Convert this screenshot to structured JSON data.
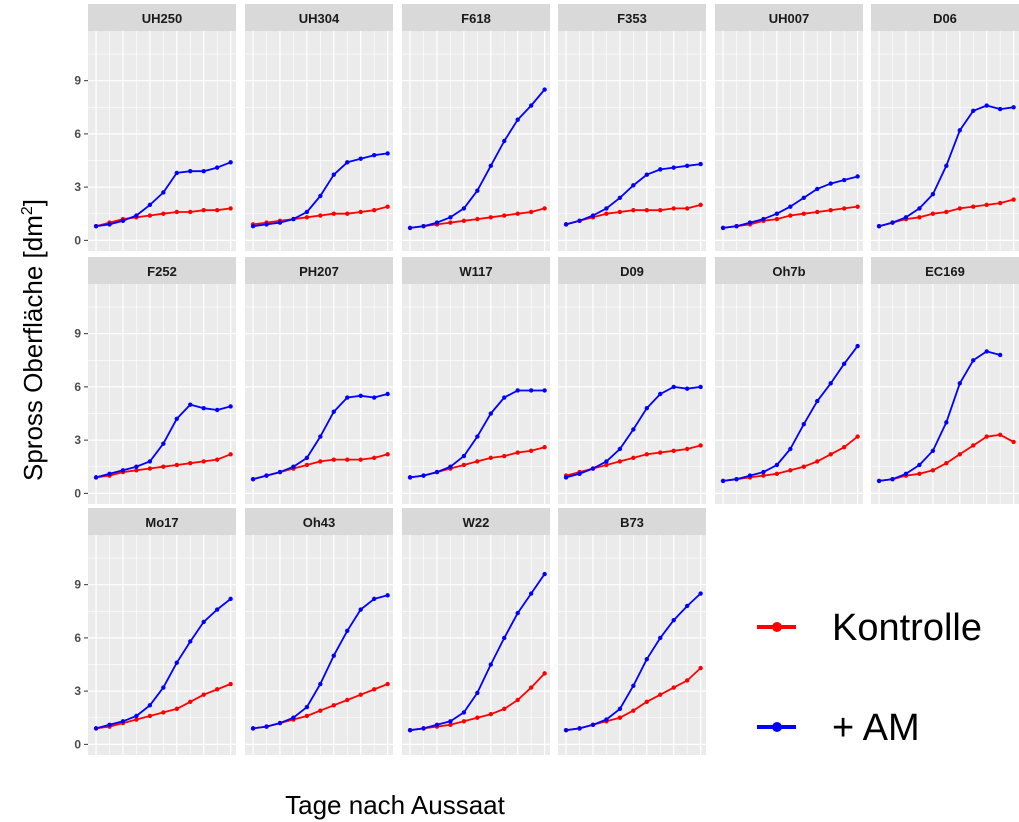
{
  "chart_data": {
    "type": "line",
    "xlabel": "Tage nach Aussaat",
    "ylabel": "Spross Oberfläche [dm²]",
    "ylabel_main": "Spross Oberfläche [dm",
    "ylabel_sup": "2",
    "ylabel_end": "]",
    "xlim": [
      17,
      72
    ],
    "ylim": [
      -0.6,
      11.8
    ],
    "x_ticks": [
      20,
      30,
      40,
      50,
      60,
      70
    ],
    "y_ticks": [
      0,
      3,
      6,
      9
    ],
    "grid": true,
    "legend_position": "right",
    "colors": {
      "Kontrolle": "#ff0000",
      "+ AM": "#0000ff",
      "panel_bg": "#ebebeb",
      "strip_bg": "#d9d9d9",
      "grid": "#ffffff"
    },
    "legend": [
      {
        "label": "Kontrolle",
        "color": "#ff0000"
      },
      {
        "label": "+ AM",
        "color": "#0000ff"
      }
    ],
    "panels": [
      {
        "title": "UH250",
        "am_x": [
          20,
          25,
          30,
          35,
          40,
          45,
          50,
          55,
          60,
          65,
          70
        ],
        "am_y": [
          0.8,
          0.9,
          1.1,
          1.4,
          2.0,
          2.7,
          3.8,
          3.9,
          3.9,
          4.1,
          4.4
        ],
        "ko_x": [
          20,
          25,
          30,
          35,
          40,
          45,
          50,
          55,
          60,
          65,
          70
        ],
        "ko_y": [
          0.8,
          1.0,
          1.2,
          1.3,
          1.4,
          1.5,
          1.6,
          1.6,
          1.7,
          1.7,
          1.8
        ]
      },
      {
        "title": "UH304",
        "am_x": [
          20,
          25,
          30,
          35,
          40,
          45,
          50,
          55,
          60,
          65,
          70
        ],
        "am_y": [
          0.8,
          0.9,
          1.0,
          1.2,
          1.6,
          2.5,
          3.7,
          4.4,
          4.6,
          4.8,
          4.9
        ],
        "ko_x": [
          20,
          25,
          30,
          35,
          40,
          45,
          50,
          55,
          60,
          65,
          70
        ],
        "ko_y": [
          0.9,
          1.0,
          1.1,
          1.2,
          1.3,
          1.4,
          1.5,
          1.5,
          1.6,
          1.7,
          1.9
        ]
      },
      {
        "title": "F618",
        "am_x": [
          20,
          25,
          30,
          35,
          40,
          45,
          50,
          55,
          60,
          65,
          70
        ],
        "am_y": [
          0.7,
          0.8,
          1.0,
          1.3,
          1.8,
          2.8,
          4.2,
          5.6,
          6.8,
          7.6,
          8.5
        ],
        "ko_x": [
          20,
          25,
          30,
          35,
          40,
          45,
          50,
          55,
          60,
          65,
          70
        ],
        "ko_y": [
          0.7,
          0.8,
          0.9,
          1.0,
          1.1,
          1.2,
          1.3,
          1.4,
          1.5,
          1.6,
          1.8
        ]
      },
      {
        "title": "F353",
        "am_x": [
          20,
          25,
          30,
          35,
          40,
          45,
          50,
          55,
          60,
          65,
          70
        ],
        "am_y": [
          0.9,
          1.1,
          1.4,
          1.8,
          2.4,
          3.1,
          3.7,
          4.0,
          4.1,
          4.2,
          4.3
        ],
        "ko_x": [
          20,
          25,
          30,
          35,
          40,
          45,
          50,
          55,
          60,
          65,
          70
        ],
        "ko_y": [
          0.9,
          1.1,
          1.3,
          1.5,
          1.6,
          1.7,
          1.7,
          1.7,
          1.8,
          1.8,
          2.0
        ]
      },
      {
        "title": "UH007",
        "am_x": [
          20,
          25,
          30,
          35,
          40,
          45,
          50,
          55,
          60,
          65,
          70
        ],
        "am_y": [
          0.7,
          0.8,
          1.0,
          1.2,
          1.5,
          1.9,
          2.4,
          2.9,
          3.2,
          3.4,
          3.6
        ],
        "ko_x": [
          20,
          25,
          30,
          35,
          40,
          45,
          50,
          55,
          60,
          65,
          70
        ],
        "ko_y": [
          0.7,
          0.8,
          0.9,
          1.1,
          1.2,
          1.4,
          1.5,
          1.6,
          1.7,
          1.8,
          1.9
        ]
      },
      {
        "title": "D06",
        "am_x": [
          20,
          25,
          30,
          35,
          40,
          45,
          50,
          55,
          60,
          65,
          70
        ],
        "am_y": [
          0.8,
          1.0,
          1.3,
          1.8,
          2.6,
          4.2,
          6.2,
          7.3,
          7.6,
          7.4,
          7.5
        ],
        "ko_x": [
          20,
          25,
          30,
          35,
          40,
          45,
          50,
          55,
          60,
          65,
          70
        ],
        "ko_y": [
          0.8,
          1.0,
          1.2,
          1.3,
          1.5,
          1.6,
          1.8,
          1.9,
          2.0,
          2.1,
          2.3
        ]
      },
      {
        "title": "F252",
        "am_x": [
          20,
          25,
          30,
          35,
          40,
          45,
          50,
          55,
          60,
          65,
          70
        ],
        "am_y": [
          0.9,
          1.1,
          1.3,
          1.5,
          1.8,
          2.8,
          4.2,
          5.0,
          4.8,
          4.7,
          4.9
        ],
        "ko_x": [
          20,
          25,
          30,
          35,
          40,
          45,
          50,
          55,
          60,
          65,
          70
        ],
        "ko_y": [
          0.9,
          1.0,
          1.2,
          1.3,
          1.4,
          1.5,
          1.6,
          1.7,
          1.8,
          1.9,
          2.2
        ]
      },
      {
        "title": "PH207",
        "am_x": [
          20,
          25,
          30,
          35,
          40,
          45,
          50,
          55,
          60,
          65,
          70
        ],
        "am_y": [
          0.8,
          1.0,
          1.2,
          1.5,
          2.0,
          3.2,
          4.6,
          5.4,
          5.5,
          5.4,
          5.6
        ],
        "ko_x": [
          20,
          25,
          30,
          35,
          40,
          45,
          50,
          55,
          60,
          65,
          70
        ],
        "ko_y": [
          0.8,
          1.0,
          1.2,
          1.4,
          1.6,
          1.8,
          1.9,
          1.9,
          1.9,
          2.0,
          2.2
        ]
      },
      {
        "title": "W117",
        "am_x": [
          20,
          25,
          30,
          35,
          40,
          45,
          50,
          55,
          60,
          65,
          70
        ],
        "am_y": [
          0.9,
          1.0,
          1.2,
          1.5,
          2.1,
          3.2,
          4.5,
          5.4,
          5.8,
          5.8,
          5.8
        ],
        "ko_x": [
          20,
          25,
          30,
          35,
          40,
          45,
          50,
          55,
          60,
          65,
          70
        ],
        "ko_y": [
          0.9,
          1.0,
          1.2,
          1.4,
          1.6,
          1.8,
          2.0,
          2.1,
          2.3,
          2.4,
          2.6
        ]
      },
      {
        "title": "D09",
        "am_x": [
          20,
          25,
          30,
          35,
          40,
          45,
          50,
          55,
          60,
          65,
          70
        ],
        "am_y": [
          0.9,
          1.1,
          1.4,
          1.8,
          2.5,
          3.6,
          4.8,
          5.6,
          6.0,
          5.9,
          6.0
        ],
        "ko_x": [
          20,
          25,
          30,
          35,
          40,
          45,
          50,
          55,
          60,
          65,
          70
        ],
        "ko_y": [
          1.0,
          1.2,
          1.4,
          1.6,
          1.8,
          2.0,
          2.2,
          2.3,
          2.4,
          2.5,
          2.7
        ]
      },
      {
        "title": "Oh7b",
        "am_x": [
          20,
          25,
          30,
          35,
          40,
          45,
          50,
          55,
          60,
          65,
          70
        ],
        "am_y": [
          0.7,
          0.8,
          1.0,
          1.2,
          1.6,
          2.5,
          3.9,
          5.2,
          6.2,
          7.3,
          8.3
        ],
        "ko_x": [
          20,
          25,
          30,
          35,
          40,
          45,
          50,
          55,
          60,
          65,
          70
        ],
        "ko_y": [
          0.7,
          0.8,
          0.9,
          1.0,
          1.1,
          1.3,
          1.5,
          1.8,
          2.2,
          2.6,
          3.2
        ]
      },
      {
        "title": "EC169",
        "am_x": [
          20,
          25,
          30,
          35,
          40,
          45,
          50,
          55,
          60,
          65
        ],
        "am_y": [
          0.7,
          0.8,
          1.1,
          1.6,
          2.4,
          4.0,
          6.2,
          7.5,
          8.0,
          7.8
        ],
        "ko_x": [
          20,
          25,
          30,
          35,
          40,
          45,
          50,
          55,
          60,
          65,
          70
        ],
        "ko_y": [
          0.7,
          0.8,
          1.0,
          1.1,
          1.3,
          1.7,
          2.2,
          2.7,
          3.2,
          3.3,
          2.9
        ]
      },
      {
        "title": "Mo17",
        "am_x": [
          20,
          25,
          30,
          35,
          40,
          45,
          50,
          55,
          60,
          65,
          70
        ],
        "am_y": [
          0.9,
          1.1,
          1.3,
          1.6,
          2.2,
          3.2,
          4.6,
          5.8,
          6.9,
          7.6,
          8.2
        ],
        "ko_x": [
          20,
          25,
          30,
          35,
          40,
          45,
          50,
          55,
          60,
          65,
          70
        ],
        "ko_y": [
          0.9,
          1.0,
          1.2,
          1.4,
          1.6,
          1.8,
          2.0,
          2.4,
          2.8,
          3.1,
          3.4
        ]
      },
      {
        "title": "Oh43",
        "am_x": [
          20,
          25,
          30,
          35,
          40,
          45,
          50,
          55,
          60,
          65,
          70
        ],
        "am_y": [
          0.9,
          1.0,
          1.2,
          1.5,
          2.1,
          3.4,
          5.0,
          6.4,
          7.6,
          8.2,
          8.4
        ],
        "ko_x": [
          20,
          25,
          30,
          35,
          40,
          45,
          50,
          55,
          60,
          65,
          70
        ],
        "ko_y": [
          0.9,
          1.0,
          1.2,
          1.4,
          1.6,
          1.9,
          2.2,
          2.5,
          2.8,
          3.1,
          3.4
        ]
      },
      {
        "title": "W22",
        "am_x": [
          20,
          25,
          30,
          35,
          40,
          45,
          50,
          55,
          60,
          65,
          70
        ],
        "am_y": [
          0.8,
          0.9,
          1.1,
          1.3,
          1.8,
          2.9,
          4.5,
          6.0,
          7.4,
          8.5,
          9.6
        ],
        "ko_x": [
          20,
          25,
          30,
          35,
          40,
          45,
          50,
          55,
          60,
          65,
          70
        ],
        "ko_y": [
          0.8,
          0.9,
          1.0,
          1.1,
          1.3,
          1.5,
          1.7,
          2.0,
          2.5,
          3.2,
          4.0
        ]
      },
      {
        "title": "B73",
        "am_x": [
          20,
          25,
          30,
          35,
          40,
          45,
          50,
          55,
          60,
          65,
          70
        ],
        "am_y": [
          0.8,
          0.9,
          1.1,
          1.4,
          2.0,
          3.3,
          4.8,
          6.0,
          7.0,
          7.8,
          8.5
        ],
        "ko_x": [
          20,
          25,
          30,
          35,
          40,
          45,
          50,
          55,
          60,
          65,
          70
        ],
        "ko_y": [
          0.8,
          0.9,
          1.1,
          1.3,
          1.5,
          1.9,
          2.4,
          2.8,
          3.2,
          3.6,
          4.3
        ]
      }
    ]
  }
}
